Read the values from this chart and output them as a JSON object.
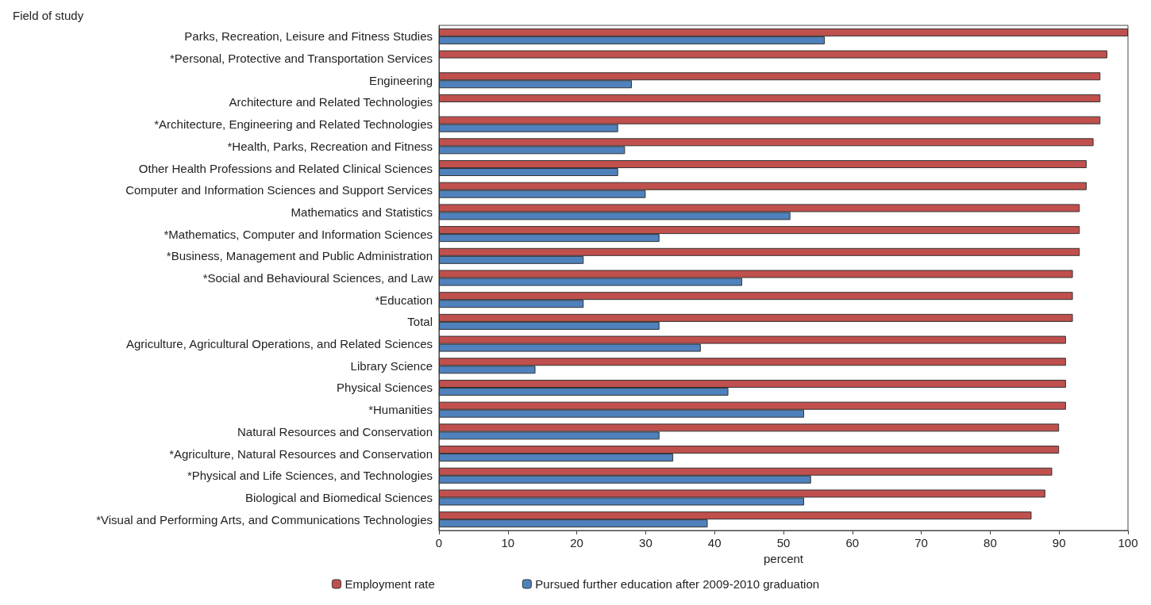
{
  "chart_data": {
    "type": "bar",
    "orientation": "horizontal",
    "ylabel": "Field of study",
    "xlabel": "percent",
    "categories": [
      "Parks, Recreation, Leisure and Fitness Studies",
      "*Personal, Protective and Transportation Services",
      "Engineering",
      "Architecture and Related Technologies",
      "*Architecture, Engineering and Related Technologies",
      "*Health, Parks, Recreation and Fitness",
      "Other Health Professions and Related Clinical Sciences",
      "Computer and Information Sciences and Support Services",
      "Mathematics and Statistics",
      "*Mathematics, Computer and Information Sciences",
      "*Business, Management and Public Administration",
      "*Social and Behavioural Sciences, and Law",
      "*Education",
      "Total",
      "Agriculture, Agricultural Operations, and Related Sciences",
      "Library Science",
      "Physical Sciences",
      "*Humanities",
      "Natural Resources and Conservation",
      "*Agriculture, Natural Resources and Conservation",
      "*Physical and Life Sciences, and Technologies",
      "Biological and Biomedical Sciences",
      "*Visual and Performing Arts, and Communications Technologies"
    ],
    "series": [
      {
        "name": "Employment rate",
        "color": "#c0504d",
        "values": [
          100,
          97,
          96,
          96,
          96,
          95,
          94,
          94,
          93,
          93,
          93,
          92,
          92,
          92,
          91,
          91,
          91,
          91,
          90,
          90,
          89,
          88,
          86
        ]
      },
      {
        "name": "Pursued further education after 2009-2010 graduation",
        "color": "#4f81bd",
        "values": [
          56,
          null,
          28,
          null,
          26,
          27,
          26,
          30,
          51,
          32,
          21,
          44,
          21,
          32,
          38,
          14,
          42,
          53,
          32,
          34,
          54,
          53,
          39
        ]
      }
    ],
    "xlim": [
      0,
      100
    ],
    "xticks": [
      0,
      10,
      20,
      30,
      40,
      50,
      60,
      70,
      80,
      90,
      100
    ],
    "grid": false,
    "legend": "bottom"
  }
}
